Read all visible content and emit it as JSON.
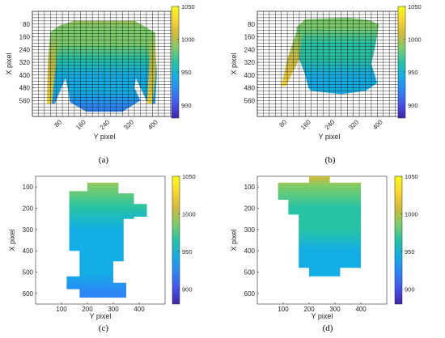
{
  "colormap": {
    "name": "parula",
    "stops": [
      "#3e26a8",
      "#4653ef",
      "#2c86f6",
      "#13aee6",
      "#26c3a5",
      "#7ccd6a",
      "#d0ba3a",
      "#fbd52d",
      "#f9fb15"
    ]
  },
  "chart_data": [
    {
      "type": "heatmap",
      "panel_label": "(a)",
      "xlabel": "Y pixel",
      "ylabel": "X pixel",
      "xlim": [
        0,
        480
      ],
      "ylim": [
        0,
        660
      ],
      "y_reversed": true,
      "xticks": [
        80,
        160,
        240,
        320,
        400
      ],
      "yticks": [
        80,
        160,
        240,
        320,
        400,
        480,
        560
      ],
      "tick_rotation": 45,
      "grid": true,
      "colorbar": {
        "min": 880,
        "max": 1050,
        "ticks": [
          900,
          950,
          1000,
          1050
        ]
      },
      "value_profile_y": [
        0,
        100,
        200,
        300,
        400,
        500,
        600,
        660
      ],
      "value_profile": [
        1003,
        996,
        976,
        962,
        952,
        942,
        920,
        915
      ],
      "body": [
        [
          140,
          60
        ],
        [
          340,
          60
        ],
        [
          370,
          90
        ],
        [
          405,
          130
        ],
        [
          415,
          380
        ],
        [
          410,
          580
        ],
        [
          385,
          580
        ],
        [
          345,
          420
        ],
        [
          340,
          480
        ],
        [
          360,
          560
        ],
        [
          300,
          630
        ],
        [
          180,
          630
        ],
        [
          125,
          570
        ],
        [
          120,
          500
        ],
        [
          110,
          420
        ],
        [
          75,
          580
        ],
        [
          50,
          580
        ],
        [
          55,
          380
        ],
        [
          60,
          130
        ],
        [
          90,
          90
        ]
      ],
      "left_arm": [
        [
          60,
          130
        ],
        [
          90,
          130
        ],
        [
          80,
          300
        ],
        [
          65,
          580
        ],
        [
          48,
          580
        ],
        [
          52,
          300
        ]
      ],
      "right_arm": [
        [
          385,
          130
        ],
        [
          410,
          130
        ],
        [
          412,
          380
        ],
        [
          400,
          580
        ],
        [
          382,
          580
        ],
        [
          390,
          300
        ]
      ]
    },
    {
      "type": "heatmap",
      "panel_label": "(b)",
      "xlabel": "Y pixel",
      "ylabel": "X pixel",
      "xlim": [
        0,
        480
      ],
      "ylim": [
        0,
        660
      ],
      "y_reversed": true,
      "xticks": [
        80,
        160,
        240,
        320,
        400
      ],
      "yticks": [
        80,
        160,
        240,
        320,
        400,
        480,
        560
      ],
      "tick_rotation": 45,
      "grid": true,
      "colorbar": {
        "min": 880,
        "max": 1050,
        "ticks": [
          900,
          950,
          1000,
          1050
        ]
      },
      "value_profile_y": [
        0,
        100,
        200,
        300,
        400,
        500,
        600,
        660
      ],
      "value_profile": [
        992,
        980,
        965,
        958,
        952,
        945,
        940,
        940
      ],
      "body": [
        [
          160,
          50
        ],
        [
          300,
          40
        ],
        [
          370,
          55
        ],
        [
          405,
          80
        ],
        [
          395,
          200
        ],
        [
          380,
          330
        ],
        [
          400,
          450
        ],
        [
          360,
          500
        ],
        [
          280,
          520
        ],
        [
          180,
          500
        ],
        [
          170,
          480
        ],
        [
          160,
          400
        ],
        [
          140,
          300
        ],
        [
          135,
          200
        ],
        [
          130,
          100
        ]
      ],
      "left_arm": [
        [
          130,
          130
        ],
        [
          150,
          130
        ],
        [
          140,
          300
        ],
        [
          95,
          470
        ],
        [
          80,
          470
        ],
        [
          100,
          300
        ]
      ]
    },
    {
      "type": "heatmap",
      "panel_label": "(c)",
      "xlabel": "Y pixel",
      "ylabel": "X pixel",
      "xlim": [
        0,
        500
      ],
      "ylim": [
        50,
        650
      ],
      "y_reversed": true,
      "xticks": [
        100,
        200,
        300,
        400
      ],
      "yticks": [
        100,
        200,
        300,
        400,
        500,
        600
      ],
      "tick_rotation": 0,
      "grid": false,
      "colorbar": {
        "min": 880,
        "max": 1050,
        "ticks": [
          900,
          950,
          1000,
          1050
        ]
      },
      "value_profile_y": [
        50,
        100,
        200,
        300,
        400,
        500,
        600,
        650
      ],
      "value_profile": [
        1000,
        995,
        970,
        950,
        945,
        938,
        930,
        930
      ],
      "body": [
        [
          200,
          80
        ],
        [
          320,
          80
        ],
        [
          320,
          130
        ],
        [
          380,
          130
        ],
        [
          380,
          180
        ],
        [
          430,
          180
        ],
        [
          430,
          240
        ],
        [
          380,
          240
        ],
        [
          380,
          250
        ],
        [
          340,
          250
        ],
        [
          340,
          450
        ],
        [
          300,
          450
        ],
        [
          300,
          550
        ],
        [
          350,
          550
        ],
        [
          350,
          620
        ],
        [
          170,
          620
        ],
        [
          170,
          580
        ],
        [
          120,
          580
        ],
        [
          120,
          520
        ],
        [
          170,
          520
        ],
        [
          170,
          400
        ],
        [
          130,
          400
        ],
        [
          130,
          120
        ],
        [
          200,
          120
        ]
      ]
    },
    {
      "type": "heatmap",
      "panel_label": "(d)",
      "xlabel": "Y pixel",
      "ylabel": "X pixel",
      "xlim": [
        0,
        500
      ],
      "ylim": [
        50,
        650
      ],
      "y_reversed": true,
      "xticks": [
        100,
        200,
        300,
        400
      ],
      "yticks": [
        100,
        200,
        300,
        400,
        500,
        600
      ],
      "tick_rotation": 0,
      "grid": false,
      "colorbar": {
        "min": 880,
        "max": 1050,
        "ticks": [
          900,
          950,
          1000,
          1050
        ]
      },
      "value_profile_y": [
        50,
        100,
        200,
        300,
        400,
        500,
        600,
        650
      ],
      "value_profile": [
        1000,
        985,
        965,
        955,
        948,
        940,
        935,
        935
      ],
      "body": [
        [
          200,
          50
        ],
        [
          280,
          50
        ],
        [
          280,
          80
        ],
        [
          400,
          80
        ],
        [
          400,
          480
        ],
        [
          320,
          480
        ],
        [
          320,
          520
        ],
        [
          200,
          520
        ],
        [
          200,
          480
        ],
        [
          160,
          480
        ],
        [
          160,
          230
        ],
        [
          120,
          230
        ],
        [
          120,
          160
        ],
        [
          80,
          160
        ],
        [
          80,
          80
        ],
        [
          200,
          80
        ]
      ]
    }
  ]
}
